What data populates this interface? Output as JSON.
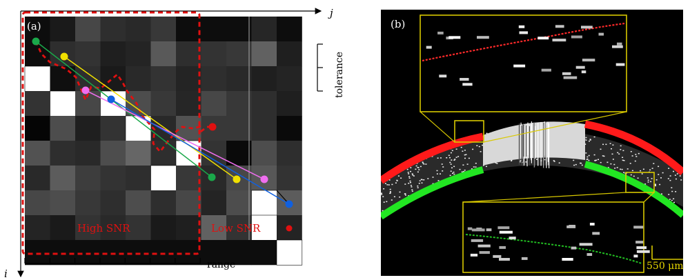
{
  "panel_a": {
    "label": "(a)",
    "axis_i": "i",
    "axis_j": "j",
    "tolerance_label": "tolerance",
    "range_label": "range",
    "high_snr_label": "High SNR",
    "low_snr_label": "Low SNR",
    "grid_levels": [
      [
        0.05,
        0.1,
        0.28,
        0.18,
        0.16,
        0.22,
        0.05,
        0.05,
        0.05,
        0.15,
        0.05
      ],
      [
        0.05,
        0.18,
        0.2,
        0.12,
        0.14,
        0.35,
        0.18,
        0.2,
        0.22,
        0.38,
        0.12
      ],
      [
        1.0,
        0.06,
        0.18,
        0.1,
        0.16,
        0.2,
        0.14,
        0.18,
        0.16,
        0.12,
        0.14
      ],
      [
        0.2,
        1.0,
        0.28,
        1.0,
        0.3,
        0.22,
        0.15,
        0.28,
        0.22,
        0.18,
        0.12
      ],
      [
        0.02,
        0.3,
        0.12,
        0.2,
        1.0,
        0.16,
        0.32,
        0.22,
        0.22,
        0.18,
        0.04
      ],
      [
        0.32,
        0.18,
        0.16,
        0.3,
        0.4,
        0.18,
        1.0,
        0.2,
        0.04,
        0.3,
        0.18
      ],
      [
        0.16,
        0.36,
        0.24,
        0.2,
        0.18,
        1.0,
        0.22,
        0.16,
        0.28,
        0.34,
        0.2
      ],
      [
        0.28,
        0.3,
        0.22,
        0.18,
        0.3,
        0.18,
        0.28,
        0.14,
        0.3,
        1.0,
        0.36
      ],
      [
        0.14,
        0.1,
        0.2,
        0.16,
        0.2,
        0.1,
        0.12,
        0.38,
        0.2,
        1.0,
        0.14
      ],
      [
        0.05,
        0.05,
        0.05,
        0.05,
        0.05,
        0.05,
        0.05,
        0.05,
        0.05,
        0.05,
        1.0
      ]
    ]
  },
  "panel_b": {
    "label": "(b)",
    "scale_label": "550 μm"
  },
  "colors": {
    "annotation_red": "#e01010",
    "green": "#1aa84a",
    "yellow": "#f0e000",
    "magenta": "#f06ef0",
    "blue": "#1060e0",
    "bscan_red": "#ff1a1a",
    "bscan_green": "#22e622",
    "inset_yellow": "#d8c800"
  }
}
